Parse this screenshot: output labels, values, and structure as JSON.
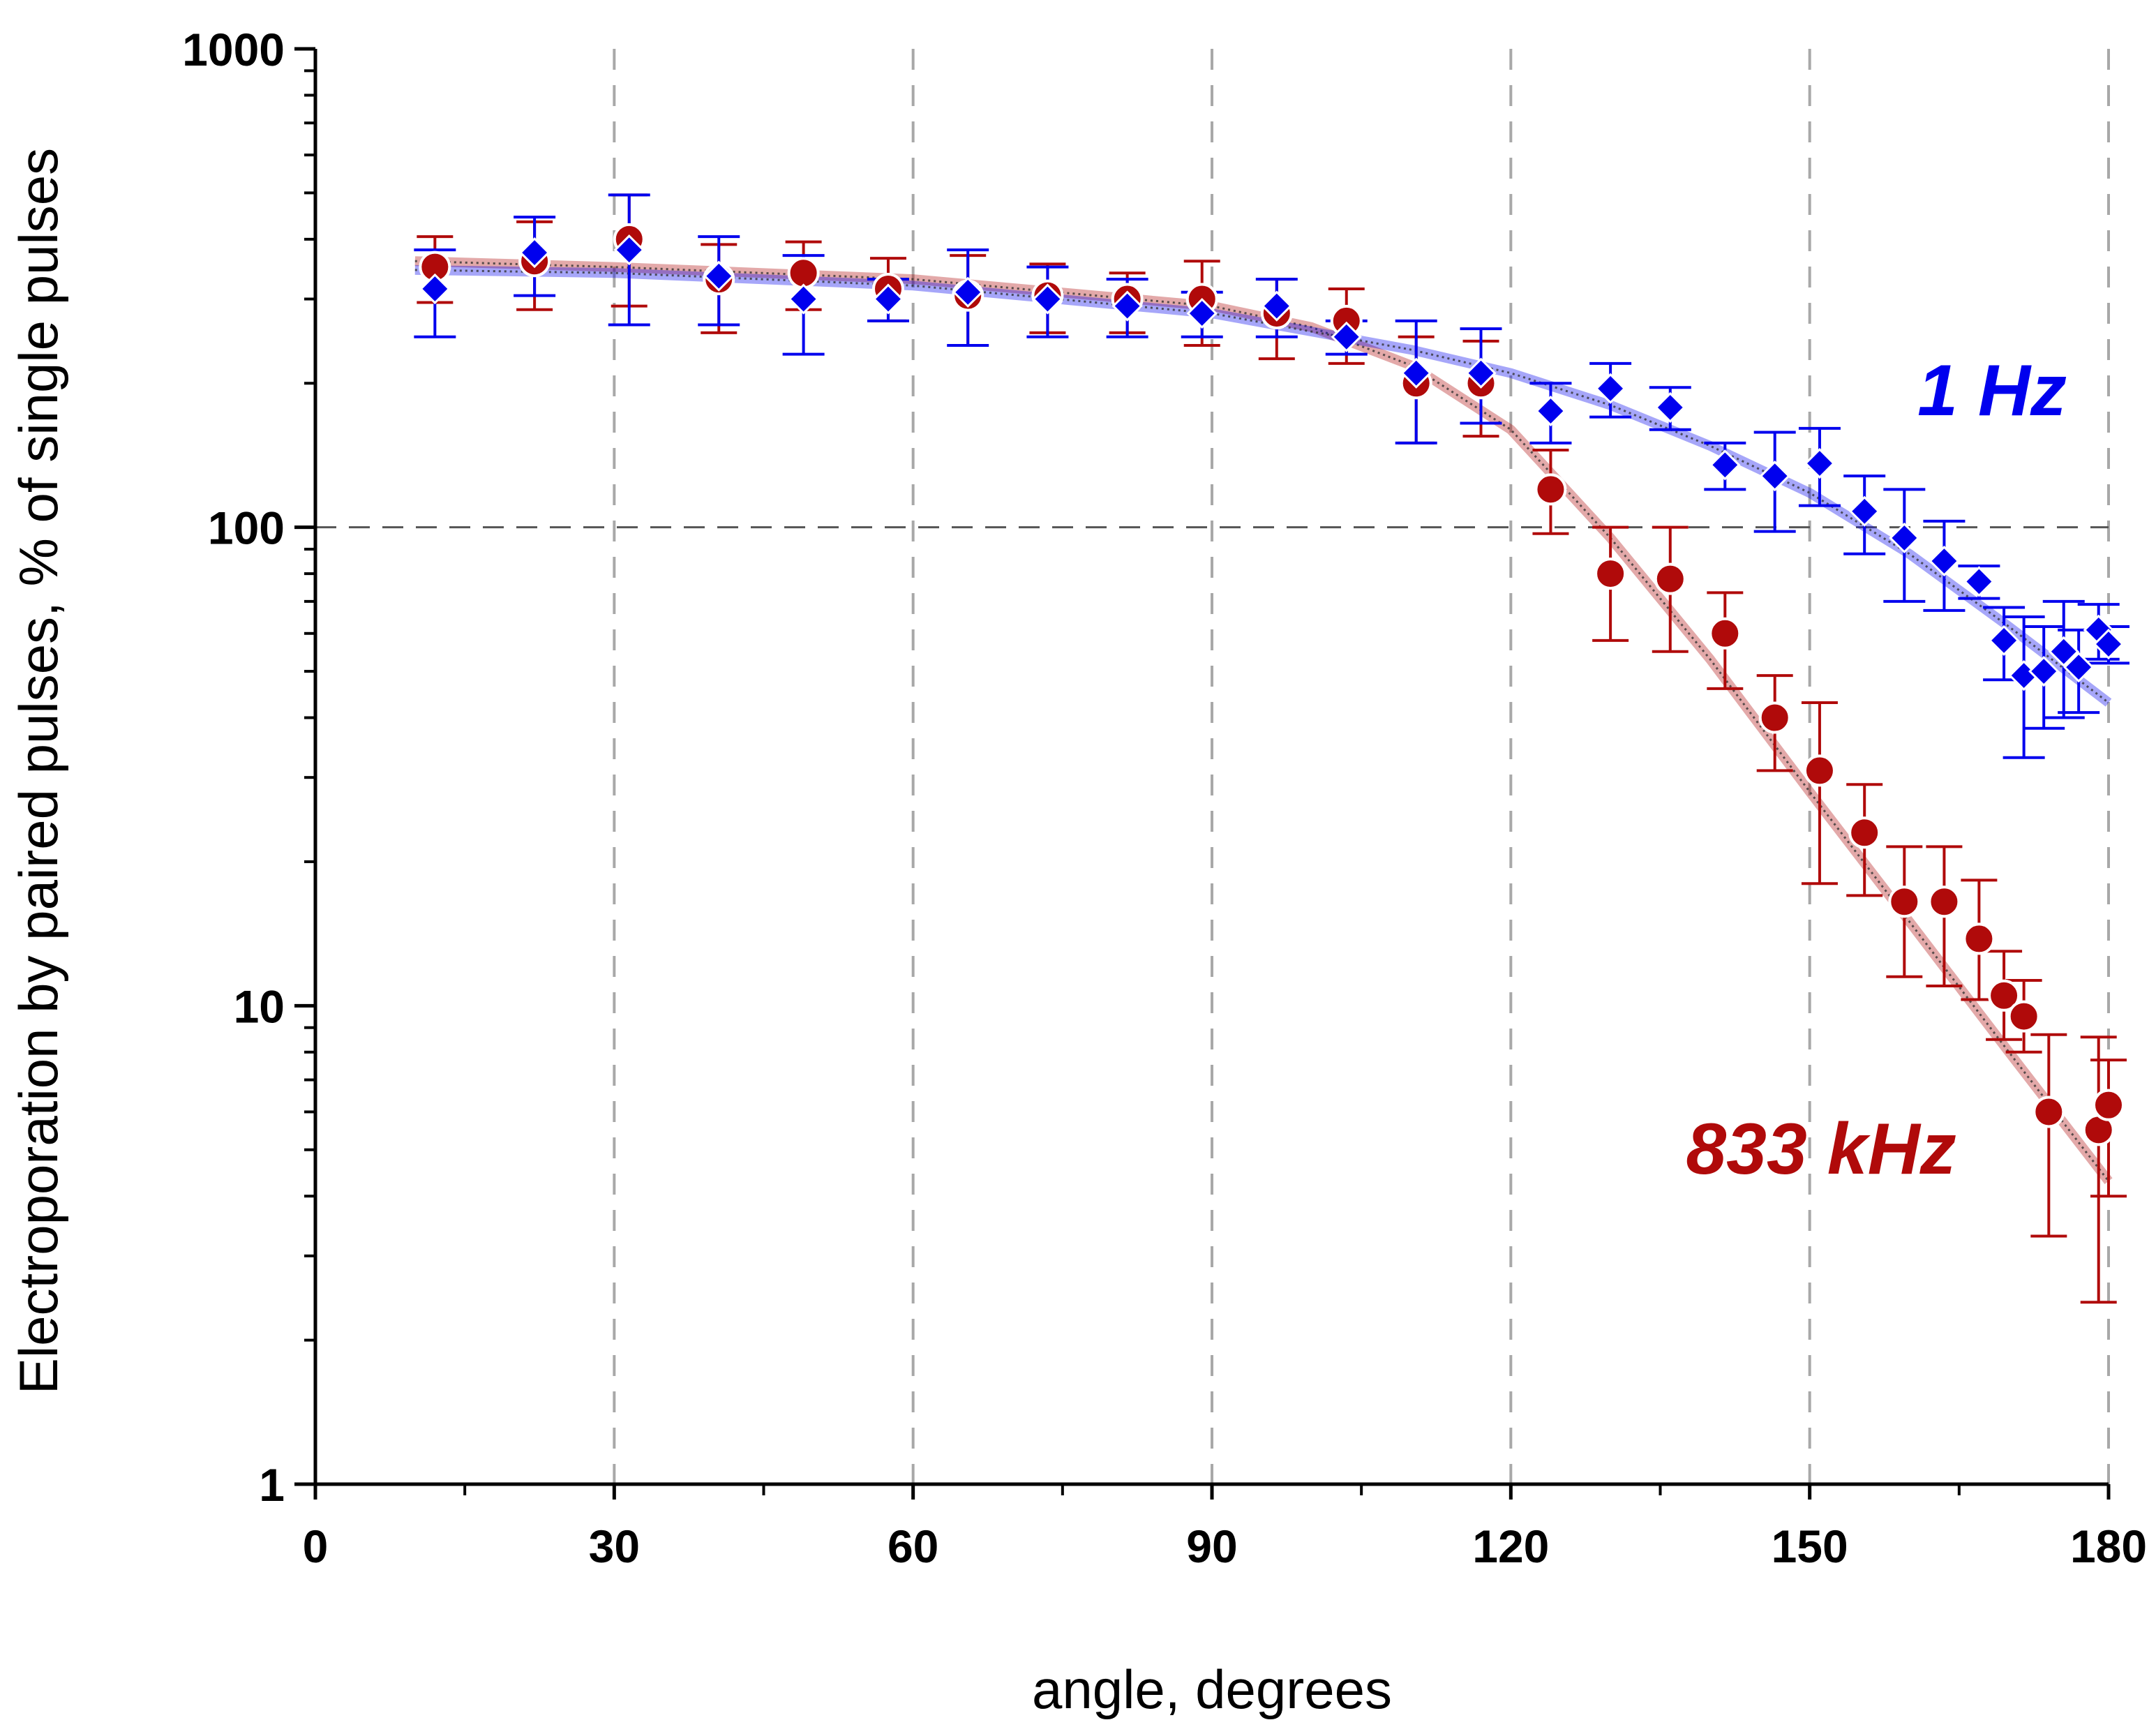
{
  "chart_data": {
    "type": "scatter",
    "title": "",
    "xlabel": "angle, degrees",
    "ylabel": "Electroporation by paired pulses, % of single pulses",
    "xlim": [
      0,
      180
    ],
    "ylim": [
      1,
      1000
    ],
    "yscale": "log",
    "x_ticks": [
      0,
      30,
      60,
      90,
      120,
      150,
      180
    ],
    "x_tick_labels": [
      "0",
      "30",
      "60",
      "90",
      "120",
      "150",
      "180"
    ],
    "y_ticks": [
      1,
      10,
      100,
      1000
    ],
    "y_tick_labels": [
      "1",
      "10",
      "100",
      "1000"
    ],
    "vertical_gridlines": [
      30,
      60,
      90,
      120,
      150,
      180
    ],
    "reference_line_y": 100,
    "series": [
      {
        "name": "833 kHz",
        "color": "#b00a0a",
        "marker": "circle",
        "x": [
          12,
          22,
          31.5,
          40.5,
          49,
          57.5,
          65.5,
          73.5,
          81.5,
          89,
          96.5,
          103.5,
          110.5,
          117,
          124,
          130,
          136,
          141.5,
          146.5,
          151,
          155.5,
          159.5,
          163.5,
          167,
          169.5,
          171.5,
          174,
          179,
          180
        ],
        "y": [
          350,
          360,
          400,
          330,
          340,
          315,
          305,
          305,
          300,
          300,
          280,
          270,
          200,
          200,
          120,
          80,
          78,
          60,
          40,
          31,
          23,
          16.5,
          16.5,
          13.8,
          10.5,
          9.5,
          6,
          5.5,
          6.2
        ],
        "err_low": [
          55,
          75,
          110,
          75,
          55,
          45,
          65,
          50,
          45,
          60,
          55,
          50,
          50,
          45,
          23,
          22,
          23,
          14,
          9,
          13,
          6,
          5,
          5.5,
          3.5,
          2,
          1.5,
          2.7,
          3.1,
          2.2
        ],
        "err_high": [
          55,
          75,
          95,
          60,
          55,
          50,
          65,
          50,
          40,
          60,
          50,
          45,
          50,
          45,
          25,
          20,
          22,
          13,
          9,
          12,
          6,
          5,
          5,
          4.5,
          2.5,
          1.8,
          2.7,
          3.1,
          1.5
        ],
        "fit": [
          [
            10,
            360
          ],
          [
            30,
            350
          ],
          [
            60,
            330
          ],
          [
            90,
            290
          ],
          [
            100,
            262
          ],
          [
            110,
            218
          ],
          [
            120,
            160
          ],
          [
            130,
            95
          ],
          [
            140,
            53
          ],
          [
            150,
            28
          ],
          [
            160,
            15
          ],
          [
            170,
            8
          ],
          [
            180,
            4.3
          ]
        ]
      },
      {
        "name": "1 Hz",
        "color": "#0000ee",
        "marker": "diamond",
        "x": [
          12,
          22,
          31.5,
          40.5,
          49,
          57.5,
          65.5,
          73.5,
          81.5,
          89,
          96.5,
          103.5,
          110.5,
          117,
          124,
          130,
          136,
          141.5,
          146.5,
          151,
          155.5,
          159.5,
          163.5,
          167,
          169.5,
          171.5,
          173.5,
          175.5,
          177,
          179,
          180
        ],
        "y": [
          315,
          375,
          380,
          335,
          300,
          300,
          310,
          300,
          290,
          280,
          290,
          250,
          210,
          210,
          175,
          195,
          178,
          135,
          128,
          136,
          108,
          95,
          85,
          77,
          58,
          49,
          50,
          55,
          51,
          61,
          57
        ],
        "err_low": [
          65,
          70,
          115,
          70,
          70,
          30,
          70,
          50,
          40,
          30,
          40,
          20,
          60,
          45,
          25,
          25,
          18,
          15,
          30,
          25,
          20,
          25,
          18,
          6,
          10,
          16,
          12,
          15,
          10,
          8,
          5
        ],
        "err_high": [
          65,
          70,
          115,
          70,
          70,
          30,
          70,
          50,
          40,
          30,
          40,
          20,
          60,
          50,
          25,
          25,
          18,
          15,
          30,
          25,
          20,
          25,
          18,
          6,
          10,
          16,
          12,
          15,
          10,
          8,
          5
        ],
        "fit": [
          [
            10,
            345
          ],
          [
            30,
            340
          ],
          [
            60,
            320
          ],
          [
            90,
            280
          ],
          [
            110,
            235
          ],
          [
            120,
            210
          ],
          [
            130,
            180
          ],
          [
            140,
            148
          ],
          [
            150,
            118
          ],
          [
            160,
            88
          ],
          [
            170,
            62
          ],
          [
            180,
            43
          ]
        ]
      }
    ],
    "annotations": [
      {
        "text": "1 Hz",
        "color": "#0000ee"
      },
      {
        "text": "833 kHz",
        "color": "#b00a0a"
      }
    ]
  }
}
